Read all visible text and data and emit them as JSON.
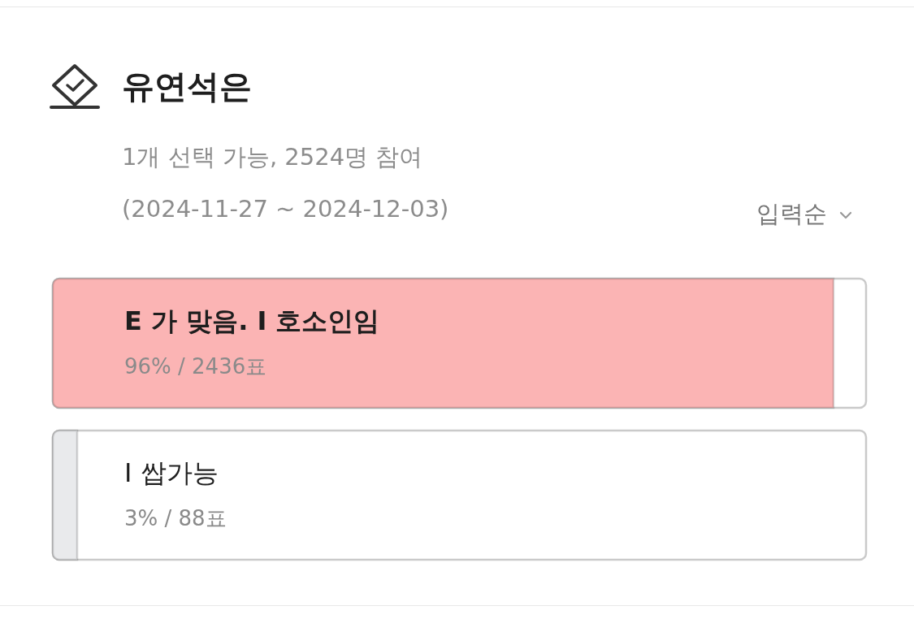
{
  "chart_data": {
    "type": "bar",
    "orientation": "horizontal",
    "title": "유연석은",
    "subtitle": "1개 선택 가능, 2524명 참여\n(2024-11-27 ~ 2024-12-03)",
    "annotations": [
      "입력순"
    ],
    "categories": [
      "E 가 맞음. I 호소인임",
      "I 쌉가능"
    ],
    "values": [
      96,
      3
    ],
    "colors": [
      "#fbb4b4",
      "#e9eaec"
    ],
    "value_labels": [
      "96% / 2436표",
      "3% / 88표"
    ],
    "xlim": [
      0,
      100
    ]
  }
}
